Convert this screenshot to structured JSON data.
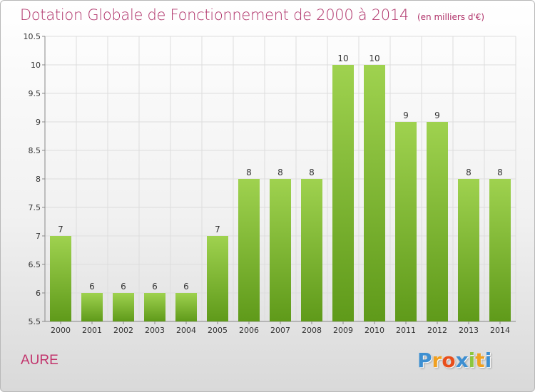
{
  "title": "Dotation Globale de Fonctionnement de 2000 à 2014",
  "subtitle": "(en milliers d'€)",
  "location": "AURE",
  "logo": {
    "text": "Proxiti",
    "letters": [
      {
        "char": "P",
        "color": "#3d8fd1"
      },
      {
        "char": "r",
        "color": "#f0a020"
      },
      {
        "char": "o",
        "color": "#e84e1b"
      },
      {
        "char": "x",
        "color": "#3d8fd1"
      },
      {
        "char": "i",
        "color": "#8cc63f"
      },
      {
        "char": "t",
        "color": "#f0a020"
      },
      {
        "char": "i",
        "color": "#3d8fd1"
      }
    ]
  },
  "colors": {
    "bar_light": "#9fd24f",
    "bar_dark": "#5f9a1a",
    "title": "#b0336a",
    "grid": "#dddddd"
  },
  "chart_data": {
    "type": "bar",
    "title": "Dotation Globale de Fonctionnement de 2000 à 2014",
    "subtitle": "(en milliers d'€)",
    "categories": [
      "2000",
      "2001",
      "2002",
      "2003",
      "2004",
      "2005",
      "2006",
      "2007",
      "2008",
      "2009",
      "2010",
      "2011",
      "2012",
      "2013",
      "2014"
    ],
    "values": [
      7,
      6,
      6,
      6,
      6,
      7,
      8,
      8,
      8,
      10,
      10,
      9,
      9,
      8,
      8
    ],
    "value_labels": [
      "7",
      "6",
      "6",
      "6",
      "6",
      "7",
      "8",
      "8",
      "8",
      "10",
      "10",
      "9",
      "9",
      "8",
      "8"
    ],
    "ylim": [
      5.5,
      10.5
    ],
    "yticks": [
      5.5,
      6,
      6.5,
      7,
      7.5,
      8,
      8.5,
      9,
      9.5,
      10,
      10.5
    ],
    "ytick_labels": [
      "5.5",
      "6",
      "6.5",
      "7",
      "7.5",
      "8",
      "8.5",
      "9",
      "9.5",
      "10",
      "10.5"
    ],
    "xlabel": "",
    "ylabel": "",
    "grid": true,
    "legend": "none"
  }
}
